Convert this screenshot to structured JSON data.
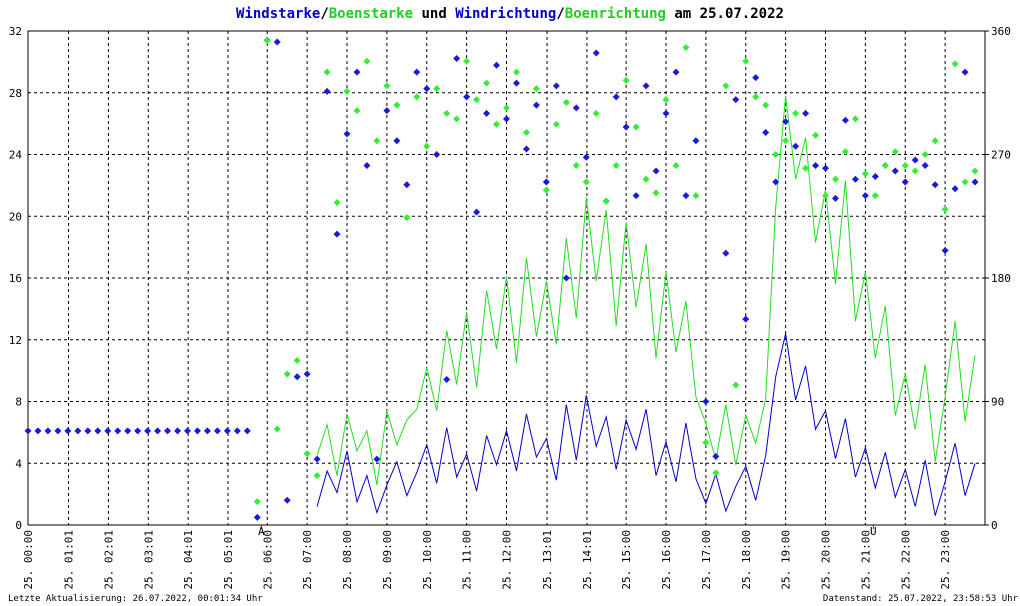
{
  "chart_data": {
    "type": "line",
    "title_separators": [
      "/",
      " und ",
      "/",
      " am 25.07.2022"
    ],
    "footer_left": "Letzte Aktualisierung: 26.07.2022, 00:01:34 Uhr",
    "footer_right": "Datenstand: 25.07.2022, 23:58:53 Uhr",
    "annotations": [
      {
        "x": 5.85,
        "text": "A"
      },
      {
        "x": 21.2,
        "text": "U"
      }
    ],
    "grid": true,
    "xlim": [
      0,
      24
    ],
    "ylim": [
      0,
      32
    ],
    "y2lim": [
      0,
      360
    ],
    "yticks": [
      0,
      4,
      8,
      12,
      16,
      20,
      24,
      28,
      32
    ],
    "y2ticks": [
      0,
      90,
      180,
      270,
      360
    ],
    "xticks": [
      {
        "value": 0,
        "label": "25. 00:00"
      },
      {
        "value": 1.0167,
        "label": "25. 01:01"
      },
      {
        "value": 2.0167,
        "label": "25. 02:01"
      },
      {
        "value": 3.0167,
        "label": "25. 03:01"
      },
      {
        "value": 4.0167,
        "label": "25. 04:01"
      },
      {
        "value": 5.0167,
        "label": "25. 05:01"
      },
      {
        "value": 6,
        "label": "25. 06:00"
      },
      {
        "value": 7,
        "label": "25. 07:00"
      },
      {
        "value": 8,
        "label": "25. 08:00"
      },
      {
        "value": 9,
        "label": "25. 09:00"
      },
      {
        "value": 10,
        "label": "25. 10:00"
      },
      {
        "value": 11,
        "label": "25. 11:00"
      },
      {
        "value": 12,
        "label": "25. 12:00"
      },
      {
        "value": 13.0167,
        "label": "25. 13:01"
      },
      {
        "value": 14.0167,
        "label": "25. 14:01"
      },
      {
        "value": 15,
        "label": "25. 15:00"
      },
      {
        "value": 16,
        "label": "25. 16:00"
      },
      {
        "value": 17,
        "label": "25. 17:00"
      },
      {
        "value": 18,
        "label": "25. 18:00"
      },
      {
        "value": 19,
        "label": "25. 19:00"
      },
      {
        "value": 20,
        "label": "25. 20:00"
      },
      {
        "value": 21,
        "label": "25. 21:00"
      },
      {
        "value": 22,
        "label": "25. 22:00"
      },
      {
        "value": 23,
        "label": "25. 23:00"
      }
    ],
    "x": [
      0,
      0.25,
      0.5,
      0.75,
      1,
      1.25,
      1.5,
      1.75,
      2,
      2.25,
      2.5,
      2.75,
      3,
      3.25,
      3.5,
      3.75,
      4,
      4.25,
      4.5,
      4.75,
      5,
      5.25,
      5.5,
      5.75,
      6,
      6.25,
      6.5,
      6.75,
      7,
      7.25,
      7.5,
      7.75,
      8,
      8.25,
      8.5,
      8.75,
      9,
      9.25,
      9.5,
      9.75,
      10,
      10.25,
      10.5,
      10.75,
      11,
      11.25,
      11.5,
      11.75,
      12,
      12.25,
      12.5,
      12.75,
      13,
      13.25,
      13.5,
      13.75,
      14,
      14.25,
      14.5,
      14.75,
      15,
      15.25,
      15.5,
      15.75,
      16,
      16.25,
      16.5,
      16.75,
      17,
      17.25,
      17.5,
      17.75,
      18,
      18.25,
      18.5,
      18.75,
      19,
      19.25,
      19.5,
      19.75,
      20,
      20.25,
      20.5,
      20.75,
      21,
      21.25,
      21.5,
      21.75,
      22,
      22.25,
      22.5,
      22.75,
      23,
      23.25,
      23.5,
      23.75
    ],
    "series": [
      {
        "name": "Windstarke",
        "color": "#0000cc",
        "mode": "line",
        "values": [
          null,
          null,
          null,
          null,
          null,
          null,
          null,
          null,
          null,
          null,
          null,
          null,
          null,
          null,
          null,
          null,
          null,
          null,
          null,
          null,
          null,
          null,
          null,
          null,
          null,
          null,
          null,
          null,
          null,
          1.2,
          3.5,
          2.1,
          4.8,
          1.5,
          3.2,
          0.8,
          2.6,
          4.1,
          1.9,
          3.4,
          5.2,
          2.7,
          6.3,
          3.1,
          4.6,
          2.2,
          5.8,
          3.9,
          6.1,
          3.5,
          7.2,
          4.4,
          5.6,
          2.9,
          7.8,
          4.2,
          8.4,
          5.1,
          7.0,
          3.6,
          6.8,
          4.9,
          7.5,
          3.2,
          5.4,
          2.8,
          6.6,
          3.0,
          1.4,
          3.3,
          0.9,
          2.5,
          3.8,
          1.6,
          4.5,
          9.6,
          12.4,
          8.1,
          10.3,
          6.2,
          7.4,
          4.3,
          6.9,
          3.1,
          5.0,
          2.4,
          4.7,
          1.8,
          3.6,
          1.2,
          4.2,
          0.6,
          2.8,
          5.3,
          1.9,
          4.0
        ]
      },
      {
        "name": "Boenstarke",
        "color": "#22dd22",
        "mode": "line",
        "values": [
          null,
          null,
          null,
          null,
          null,
          null,
          null,
          null,
          null,
          null,
          null,
          null,
          null,
          null,
          null,
          null,
          null,
          null,
          null,
          null,
          null,
          null,
          null,
          null,
          null,
          null,
          null,
          null,
          null,
          4.5,
          6.5,
          3.2,
          7.2,
          4.8,
          6.1,
          2.6,
          7.4,
          5.2,
          6.8,
          7.5,
          10.2,
          7.4,
          12.6,
          9.1,
          13.8,
          8.9,
          15.2,
          11.4,
          16.1,
          10.5,
          17.3,
          12.2,
          15.8,
          11.7,
          18.6,
          13.4,
          21.2,
          15.8,
          20.4,
          12.9,
          19.6,
          14.1,
          18.2,
          10.8,
          16.4,
          11.2,
          14.5,
          8.3,
          6.6,
          4.2,
          7.8,
          3.9,
          7.1,
          5.3,
          8.2,
          20.6,
          27.8,
          22.4,
          25.1,
          18.3,
          21.7,
          15.6,
          22.3,
          13.2,
          16.4,
          10.8,
          14.2,
          7.1,
          9.8,
          6.2,
          10.4,
          4.1,
          8.3,
          13.2,
          6.7,
          11.0
        ]
      },
      {
        "name": "Windrichtung",
        "color": "#1a1adb",
        "mode": "markers",
        "axis": "y2",
        "values": [
          68.6,
          68.6,
          68.6,
          68.6,
          68.6,
          68.6,
          68.6,
          68.6,
          68.6,
          68.6,
          68.6,
          68.6,
          68.6,
          68.6,
          68.6,
          68.6,
          68.6,
          68.6,
          68.6,
          68.6,
          68.6,
          68.6,
          68.6,
          5.6,
          353.3,
          352,
          18,
          108,
          110,
          48,
          316,
          212,
          285,
          330,
          262,
          48,
          302,
          280,
          248,
          330,
          318,
          270,
          106,
          340,
          312,
          228,
          300,
          335,
          296,
          322,
          274,
          306,
          250,
          320,
          180,
          304,
          268,
          344,
          236,
          312,
          290,
          240,
          320,
          258,
          300,
          330,
          240,
          280,
          90,
          50,
          198,
          310,
          150,
          326,
          286,
          250,
          294,
          276,
          300,
          262,
          260,
          238,
          295,
          252,
          240,
          254,
          262,
          258,
          250,
          266,
          262,
          248,
          200,
          245,
          330,
          250
        ]
      },
      {
        "name": "Boenrichtung",
        "color": "#33ee33",
        "mode": "markers",
        "axis": "y2",
        "values": [
          null,
          null,
          null,
          null,
          null,
          null,
          null,
          null,
          null,
          null,
          null,
          null,
          null,
          null,
          null,
          null,
          null,
          null,
          null,
          null,
          null,
          null,
          null,
          17,
          353,
          70,
          110,
          120,
          52,
          36,
          330,
          235,
          316,
          302,
          338,
          280,
          320,
          306,
          224,
          312,
          276,
          318,
          300,
          296,
          338,
          310,
          322,
          292,
          304,
          330,
          286,
          318,
          244,
          292,
          308,
          262,
          250,
          300,
          236,
          262,
          324,
          290,
          252,
          242,
          310,
          262,
          348,
          240,
          60,
          38,
          320,
          102,
          338,
          312,
          306,
          270,
          280,
          300,
          260,
          284,
          240,
          252,
          272,
          296,
          256,
          240,
          262,
          272,
          262,
          258,
          270,
          280,
          230,
          336,
          250,
          258
        ]
      }
    ]
  }
}
